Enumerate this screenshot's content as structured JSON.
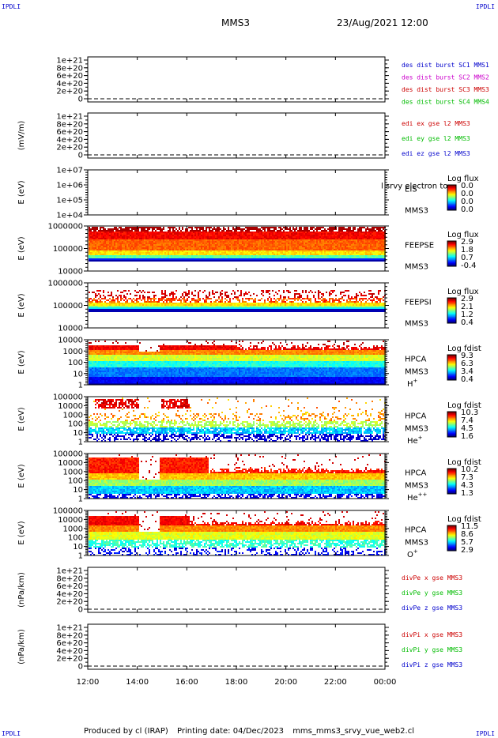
{
  "header": {
    "corner_label": "IPDLI",
    "spacecraft": "MMS3",
    "datetime": "23/Aug/2021 12:00"
  },
  "footer": {
    "produced_by": "Produced by cl (IRAP)",
    "printing_date": "Printing date: 04/Dec/2023",
    "script_name": "mms_mms3_srvy_vue_web2.cl"
  },
  "chart_data": {
    "type": "timeseries-stack",
    "x_ticks": [
      "12:00",
      "14:00",
      "16:00",
      "18:00",
      "20:00",
      "22:00",
      "00:00"
    ],
    "panels": [
      {
        "kind": "line",
        "ylabel": "",
        "y_ticks": [
          "1e+21",
          "8e+20",
          "6e+20",
          "4e+20",
          "2e+20",
          "0"
        ],
        "y_range": [
          0,
          1e+21
        ],
        "dashed_zero": true,
        "legend": [
          {
            "text": "des dist burst SC1 MMS1",
            "color": "#0000cc"
          },
          {
            "text": "des dist burst SC2 MMS2",
            "color": "#cc00cc"
          },
          {
            "text": "des dist burst SC3 MMS3",
            "color": "#cc0000"
          },
          {
            "text": "des dist burst SC4 MMS4",
            "color": "#00bb00"
          }
        ]
      },
      {
        "kind": "line",
        "ylabel": "(mV/m)",
        "y_ticks": [
          "1e+21",
          "8e+20",
          "6e+20",
          "4e+20",
          "2e+20",
          "0"
        ],
        "y_range": [
          0,
          1e+21
        ],
        "dashed_zero": true,
        "legend": [
          {
            "text": "edi ex gse l2 MMS3",
            "color": "#cc0000"
          },
          {
            "text": "edi ey gse l2 MMS3",
            "color": "#00bb00"
          },
          {
            "text": "edi ez gse l2 MMS3",
            "color": "#0000cc"
          }
        ]
      },
      {
        "kind": "spectrogram",
        "ylabel": "E (eV)",
        "y_ticks": [
          "1e+07",
          "1e+06",
          "1e+05",
          "1e+04"
        ],
        "y_log": [
          4,
          7
        ],
        "data": "none",
        "label_lines": [
          "EIS",
          "MMS3"
        ],
        "overlay_text": "l srvy electron to",
        "cbar_title": "Log flux",
        "cbar_ticks": [
          "0.0",
          "0.0",
          "0.0",
          "0.0"
        ]
      },
      {
        "kind": "spectrogram",
        "ylabel": "E (eV)",
        "y_ticks": [
          "1000000",
          "100000",
          "10000"
        ],
        "y_log": [
          4,
          6
        ],
        "data": "feeps_e",
        "label_lines": [
          "FEEPSE",
          "MMS3"
        ],
        "cbar_title": "Log flux",
        "cbar_ticks": [
          "2.9",
          "1.8",
          "0.7",
          "-0.4"
        ]
      },
      {
        "kind": "spectrogram",
        "ylabel": "E (eV)",
        "y_ticks": [
          "1000000",
          "100000",
          "10000"
        ],
        "y_log": [
          4,
          6
        ],
        "data": "feeps_i",
        "label_lines": [
          "FEEPSI",
          "MMS3"
        ],
        "cbar_title": "Log flux",
        "cbar_ticks": [
          "2.9",
          "2.1",
          "1.2",
          "0.4"
        ]
      },
      {
        "kind": "spectrogram",
        "ylabel": "E (eV)",
        "y_ticks": [
          "10000",
          "1000",
          "100",
          "10",
          "1"
        ],
        "y_log": [
          0,
          4.6
        ],
        "data": "hpca_h",
        "label_lines": [
          "HPCA",
          "MMS3"
        ],
        "species": "H",
        "species_sup": "+",
        "cbar_title": "Log fdist",
        "cbar_ticks": [
          "9.3",
          "6.3",
          "3.4",
          "0.4"
        ]
      },
      {
        "kind": "spectrogram",
        "ylabel": "E (eV)",
        "y_ticks": [
          "100000",
          "10000",
          "1000",
          "100",
          "10",
          "1"
        ],
        "y_log": [
          0,
          5
        ],
        "data": "hpca_he",
        "label_lines": [
          "HPCA",
          "MMS3"
        ],
        "species": "He",
        "species_sup": "+",
        "cbar_title": "Log fdist",
        "cbar_ticks": [
          "10.3",
          "7.4",
          "4.5",
          "1.6"
        ]
      },
      {
        "kind": "spectrogram",
        "ylabel": "E (eV)",
        "y_ticks": [
          "100000",
          "10000",
          "1000",
          "100",
          "10",
          "1"
        ],
        "y_log": [
          0,
          5
        ],
        "data": "hpca_hepp",
        "label_lines": [
          "HPCA",
          "MMS3"
        ],
        "species": "He",
        "species_sup": "++",
        "cbar_title": "Log fdist",
        "cbar_ticks": [
          "10.2",
          "7.3",
          "4.3",
          "1.3"
        ]
      },
      {
        "kind": "spectrogram",
        "ylabel": "E (eV)",
        "y_ticks": [
          "100000",
          "10000",
          "1000",
          "100",
          "10",
          "1"
        ],
        "y_log": [
          0,
          5
        ],
        "data": "hpca_o",
        "label_lines": [
          "HPCA",
          "MMS3"
        ],
        "species": "O",
        "species_sup": "+",
        "cbar_title": "Log fdist",
        "cbar_ticks": [
          "11.5",
          "8.6",
          "5.7",
          "2.9"
        ]
      },
      {
        "kind": "line",
        "ylabel": "(nPa/km)",
        "y_ticks": [
          "1e+21",
          "8e+20",
          "6e+20",
          "4e+20",
          "2e+20",
          "0"
        ],
        "y_range": [
          0,
          1e+21
        ],
        "dashed_zero": true,
        "legend": [
          {
            "text": "divPe x gse MMS3",
            "color": "#cc0000"
          },
          {
            "text": "divPe y gse MMS3",
            "color": "#00bb00"
          },
          {
            "text": "divPe z gse MMS3",
            "color": "#0000cc"
          }
        ]
      },
      {
        "kind": "line",
        "ylabel": "(nPa/km)",
        "y_ticks": [
          "1e+21",
          "8e+20",
          "6e+20",
          "4e+20",
          "2e+20",
          "0"
        ],
        "y_range": [
          0,
          1e+21
        ],
        "dashed_zero": true,
        "legend": [
          {
            "text": "divPi x gse MMS3",
            "color": "#cc0000"
          },
          {
            "text": "divPi y gse MMS3",
            "color": "#00bb00"
          },
          {
            "text": "divPi z gse MMS3",
            "color": "#0000cc"
          }
        ]
      }
    ]
  }
}
